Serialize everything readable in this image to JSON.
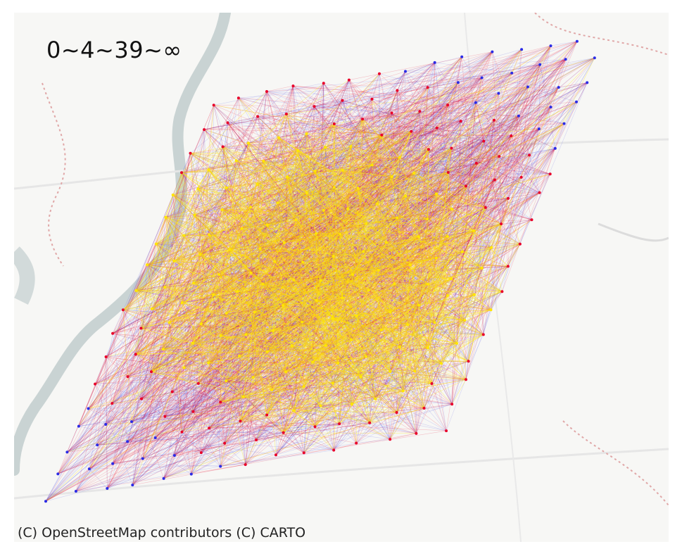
{
  "legend_label": "0~4~39~∞",
  "attribution": "(C) OpenStreetMap contributors (C) CARTO",
  "colors": {
    "background": "#f7f7f5",
    "river": "#c9d3d3",
    "road": "#e6e6e6",
    "boundary": "#e0a7a7",
    "low": "#2b2be6",
    "mid": "#e8002a",
    "high": "#ffe600"
  },
  "bin_thresholds": [
    0,
    4,
    39
  ]
}
